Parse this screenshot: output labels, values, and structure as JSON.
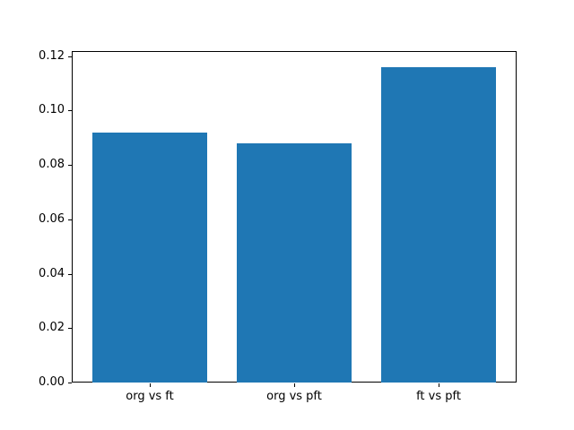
{
  "chart_data": {
    "type": "bar",
    "categories": [
      "org vs ft",
      "org vs pft",
      "ft vs pft"
    ],
    "values": [
      0.092,
      0.088,
      0.116
    ],
    "title": "",
    "xlabel": "",
    "ylabel": "",
    "ylim": [
      0,
      0.1218
    ],
    "yticks": [
      0.0,
      0.02,
      0.04,
      0.06,
      0.08,
      0.1,
      0.12
    ],
    "ytick_labels": [
      "0.00",
      "0.02",
      "0.04",
      "0.06",
      "0.08",
      "0.10",
      "0.12"
    ],
    "bar_color": "#1f77b4",
    "grid": false,
    "legend": null
  },
  "colors": {
    "background": "#ffffff",
    "axis": "#000000",
    "text": "#000000",
    "bar": "#1f77b4"
  }
}
